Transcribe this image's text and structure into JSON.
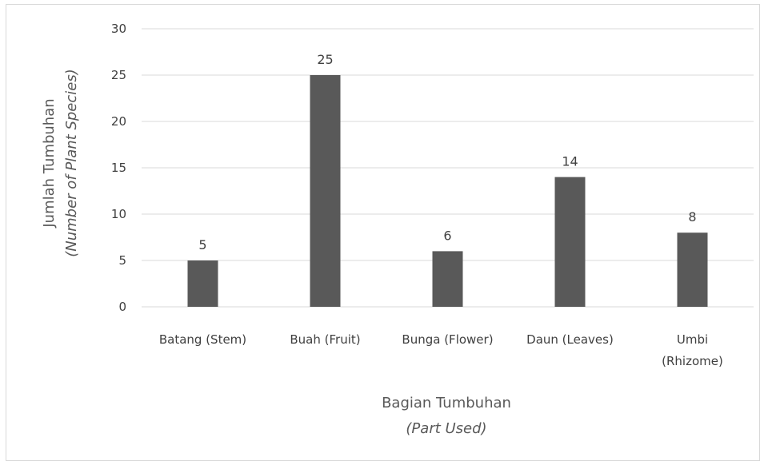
{
  "chart_data": {
    "type": "bar",
    "categories": [
      [
        "Batang (Stem)"
      ],
      [
        "Buah (Fruit)"
      ],
      [
        "Bunga (Flower)"
      ],
      [
        "Daun (Leaves)"
      ],
      [
        "Umbi",
        "(Rhizome)"
      ]
    ],
    "values": [
      5,
      25,
      6,
      14,
      8
    ],
    "ylim": [
      0,
      30
    ],
    "yticks": [
      0,
      5,
      10,
      15,
      20,
      25,
      30
    ],
    "grid": true,
    "bar_color": "#595959",
    "xlabel": "Bagian Tumbuhan",
    "xlabel_sub": "(Part Used)",
    "ylabel": "Jumlah Tumbuhan",
    "ylabel_sub": "(Number of Plant Species)"
  }
}
